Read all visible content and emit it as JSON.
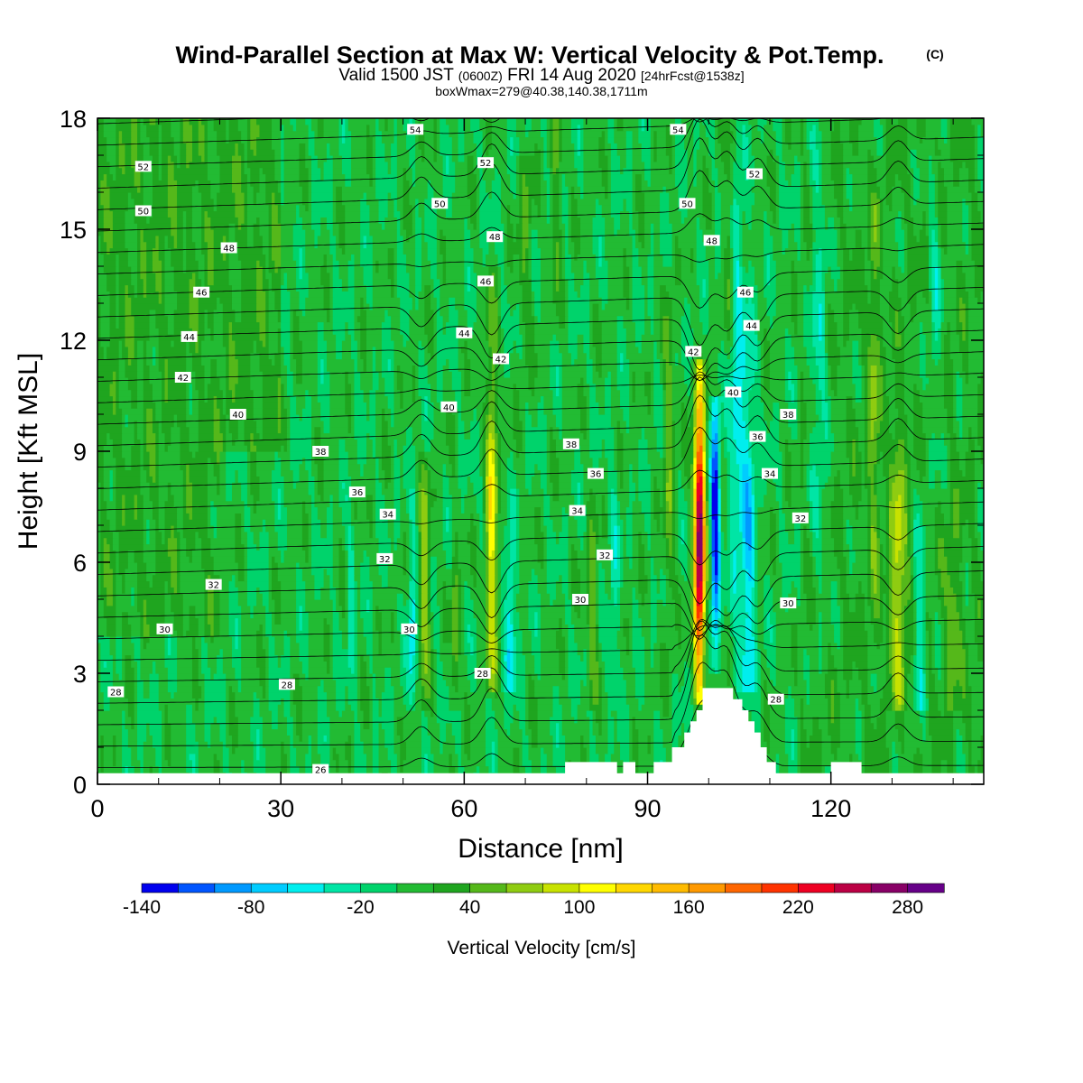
{
  "chart_data": {
    "type": "heatmap",
    "title": "Wind-Parallel Section at Max W: Vertical Velocity & Pot.Temp.",
    "copyright_mark": "(C)",
    "subtitle_main_1": "Valid 1500 JST",
    "subtitle_utc": "(0600Z)",
    "subtitle_main_2": "FRI 14 Aug 2020",
    "subtitle_forecast": "[24hrFcst@1538z]",
    "subtitle_2": "boxWmax=279@40.38,140.38,1711m",
    "xlabel": "Distance [nm]",
    "ylabel": "Height [Kft MSL]",
    "xlim": [
      0,
      145
    ],
    "ylim": [
      0,
      18
    ],
    "x_ticks": [
      "0",
      "30",
      "60",
      "90",
      "120"
    ],
    "y_ticks": [
      "0",
      "3",
      "6",
      "9",
      "12",
      "15",
      "18"
    ],
    "colorbar": {
      "label": "Vertical Velocity [cm/s]",
      "tick_labels": [
        "-140",
        "-80",
        "-20",
        "40",
        "100",
        "160",
        "220",
        "280"
      ],
      "levels": [
        -140,
        -120,
        -100,
        -80,
        -60,
        -40,
        -20,
        0,
        20,
        40,
        60,
        80,
        100,
        120,
        140,
        160,
        180,
        200,
        220,
        240,
        260,
        280,
        300
      ],
      "colors": [
        "#0000ee",
        "#0055ff",
        "#0099ff",
        "#00ccff",
        "#00eeee",
        "#00e5a5",
        "#00d36b",
        "#22bb33",
        "#1fa51f",
        "#55b81a",
        "#8fcc11",
        "#c8e200",
        "#ffff00",
        "#ffd700",
        "#ffbb00",
        "#ff9900",
        "#ff6600",
        "#ff3300",
        "#ee0022",
        "#bb0044",
        "#880066",
        "#660088"
      ]
    },
    "vertical_velocity_features": [
      {
        "x": 64.5,
        "peak_cm_s": 110
      },
      {
        "x": 53.5,
        "peak_cm_s": 70
      },
      {
        "x": 98.5,
        "peak_cm_s": 279
      },
      {
        "x": 101,
        "peak_cm_s": -140
      },
      {
        "x": 103.5,
        "peak_cm_s": 50
      },
      {
        "x": 106,
        "peak_cm_s": -80
      },
      {
        "x": 131,
        "peak_cm_s": 70
      },
      {
        "x": 138,
        "peak_cm_s": -60
      }
    ],
    "theta_contours": [
      {
        "label": "26",
        "x": 36.5,
        "y": 0.4
      },
      {
        "label": "28",
        "x": 3,
        "y": 2.5
      },
      {
        "label": "28",
        "x": 31,
        "y": 2.7
      },
      {
        "label": "28",
        "x": 63,
        "y": 3.0
      },
      {
        "label": "28",
        "x": 111,
        "y": 2.3
      },
      {
        "label": "30",
        "x": 11,
        "y": 4.2
      },
      {
        "label": "30",
        "x": 51,
        "y": 4.2
      },
      {
        "label": "30",
        "x": 79,
        "y": 5.0
      },
      {
        "label": "30",
        "x": 113,
        "y": 4.9
      },
      {
        "label": "32",
        "x": 19,
        "y": 5.4
      },
      {
        "label": "32",
        "x": 47,
        "y": 6.1
      },
      {
        "label": "32",
        "x": 83,
        "y": 6.2
      },
      {
        "label": "32",
        "x": 115,
        "y": 7.2
      },
      {
        "label": "34",
        "x": 47.5,
        "y": 7.3
      },
      {
        "label": "34",
        "x": 78.5,
        "y": 7.4
      },
      {
        "label": "34",
        "x": 110,
        "y": 8.4
      },
      {
        "label": "36",
        "x": 42.5,
        "y": 7.9
      },
      {
        "label": "36",
        "x": 81.5,
        "y": 8.4
      },
      {
        "label": "36",
        "x": 108,
        "y": 9.4
      },
      {
        "label": "38",
        "x": 36.5,
        "y": 9.0
      },
      {
        "label": "38",
        "x": 77.5,
        "y": 9.2
      },
      {
        "label": "38",
        "x": 113,
        "y": 10.0
      },
      {
        "label": "40",
        "x": 23,
        "y": 10.0
      },
      {
        "label": "40",
        "x": 57.5,
        "y": 10.2
      },
      {
        "label": "40",
        "x": 104,
        "y": 10.6
      },
      {
        "label": "42",
        "x": 14,
        "y": 11.0
      },
      {
        "label": "42",
        "x": 66,
        "y": 11.5
      },
      {
        "label": "42",
        "x": 97.5,
        "y": 11.7
      },
      {
        "label": "44",
        "x": 15,
        "y": 12.1
      },
      {
        "label": "44",
        "x": 60,
        "y": 12.2
      },
      {
        "label": "44",
        "x": 107,
        "y": 12.4
      },
      {
        "label": "46",
        "x": 17,
        "y": 13.3
      },
      {
        "label": "46",
        "x": 63.5,
        "y": 13.6
      },
      {
        "label": "46",
        "x": 106,
        "y": 13.3
      },
      {
        "label": "48",
        "x": 21.5,
        "y": 14.5
      },
      {
        "label": "48",
        "x": 65,
        "y": 14.8
      },
      {
        "label": "48",
        "x": 100.5,
        "y": 14.7
      },
      {
        "label": "50",
        "x": 7.5,
        "y": 15.5
      },
      {
        "label": "50",
        "x": 56,
        "y": 15.7
      },
      {
        "label": "50",
        "x": 96.5,
        "y": 15.7
      },
      {
        "label": "52",
        "x": 7.5,
        "y": 16.7
      },
      {
        "label": "52",
        "x": 63.5,
        "y": 16.8
      },
      {
        "label": "52",
        "x": 107.5,
        "y": 16.5
      },
      {
        "label": "54",
        "x": 52,
        "y": 17.7
      },
      {
        "label": "54",
        "x": 95,
        "y": 17.7
      }
    ],
    "terrain": [
      [
        0,
        0.3
      ],
      [
        76.5,
        0.3
      ],
      [
        76.5,
        0.6
      ],
      [
        85,
        0.6
      ],
      [
        85,
        0.3
      ],
      [
        86,
        0.3
      ],
      [
        86,
        0.6
      ],
      [
        88,
        0.6
      ],
      [
        88,
        0.3
      ],
      [
        91,
        0.3
      ],
      [
        91,
        0.6
      ],
      [
        94,
        0.6
      ],
      [
        94,
        1.0
      ],
      [
        96,
        1.0
      ],
      [
        96,
        1.4
      ],
      [
        97,
        1.4
      ],
      [
        97,
        1.7
      ],
      [
        98,
        1.7
      ],
      [
        98,
        2.0
      ],
      [
        99,
        2.0
      ],
      [
        99,
        2.6
      ],
      [
        104,
        2.6
      ],
      [
        104,
        2.3
      ],
      [
        105.5,
        2.3
      ],
      [
        105.5,
        2.0
      ],
      [
        106.5,
        2.0
      ],
      [
        106.5,
        1.7
      ],
      [
        107.5,
        1.7
      ],
      [
        107.5,
        1.4
      ],
      [
        108.5,
        1.4
      ],
      [
        108.5,
        1.0
      ],
      [
        109.5,
        1.0
      ],
      [
        109.5,
        0.6
      ],
      [
        111,
        0.6
      ],
      [
        111,
        0.3
      ],
      [
        120,
        0.3
      ],
      [
        120,
        0.6
      ],
      [
        125,
        0.6
      ],
      [
        125,
        0.3
      ],
      [
        145,
        0.3
      ]
    ]
  }
}
